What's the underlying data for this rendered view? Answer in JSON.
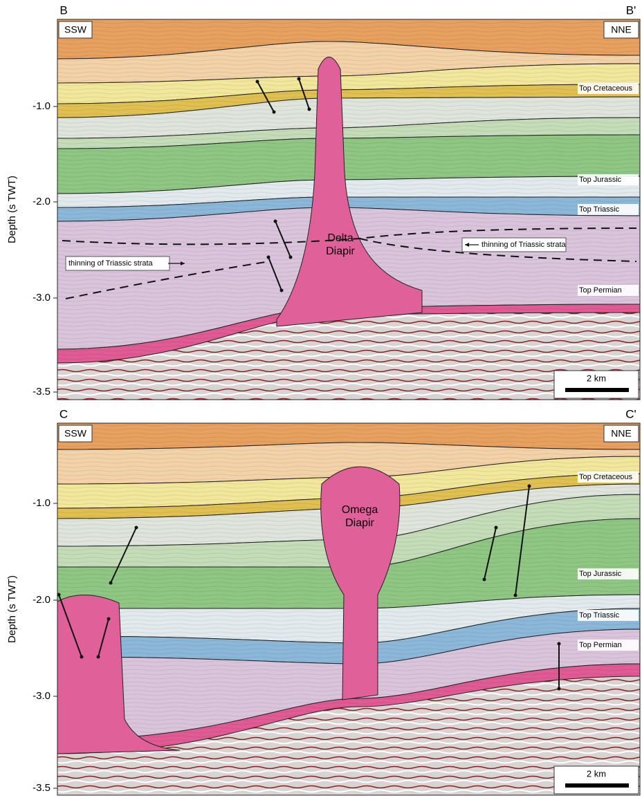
{
  "panels": [
    {
      "left_label": "B",
      "right_label": "B'",
      "left_direction": "SSW",
      "right_direction": "NNE",
      "y_axis_label": "Depth (s TWT)",
      "y_ticks": [
        "-1.0",
        "-2.0",
        "-3.0",
        "-3.5"
      ],
      "horizons": [
        "Top Cretaceous",
        "Top Jurassic",
        "Top Triassic",
        "Top Permian"
      ],
      "diapir_label": [
        "Delta",
        "Diapir"
      ],
      "annotations": [
        "thinning of Triassic strata",
        "thinning of Triassic strata"
      ],
      "scale_bar": "2 km"
    },
    {
      "left_label": "C",
      "right_label": "C'",
      "left_direction": "SSW",
      "right_direction": "NNE",
      "y_axis_label": "Depth (s TWT)",
      "y_ticks": [
        "-1.0",
        "-2.0",
        "-3.0",
        "-3.5"
      ],
      "horizons": [
        "Top Cretaceous",
        "Top Jurassic",
        "Top Triassic",
        "Top Permian"
      ],
      "diapir_label": [
        "Omega",
        "Diapir"
      ],
      "scale_bar": "2 km"
    }
  ]
}
